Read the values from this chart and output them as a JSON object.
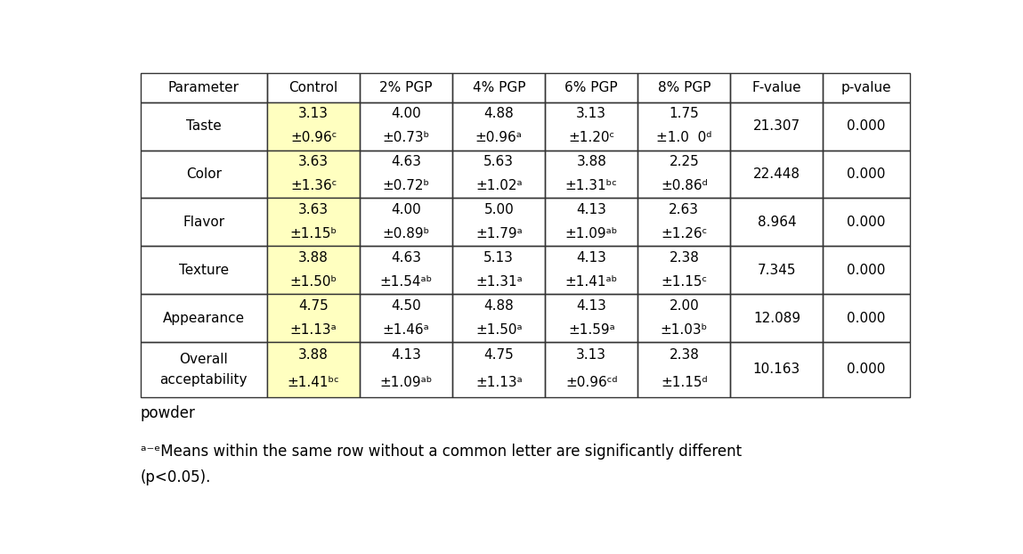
{
  "headers": [
    "Parameter",
    "Control",
    "2% PGP",
    "4% PGP",
    "6% PGP",
    "8% PGP",
    "F-value",
    "p-value"
  ],
  "rows": [
    {
      "param": "Taste",
      "line1": [
        "3.13",
        "4.00",
        "4.88",
        "3.13",
        "1.75"
      ],
      "line2": [
        "±0.96ᶜ",
        "±0.73ᵇ",
        "±0.96ᵃ",
        "±1.20ᶜ",
        "±1.0  0ᵈ"
      ],
      "f_value": "21.307",
      "p_value": "0.000"
    },
    {
      "param": "Color",
      "line1": [
        "3.63",
        "4.63",
        "5.63",
        "3.88",
        "2.25"
      ],
      "line2": [
        "±1.36ᶜ",
        "±0.72ᵇ",
        "±1.02ᵃ",
        "±1.31ᵇᶜ",
        "±0.86ᵈ"
      ],
      "f_value": "22.448",
      "p_value": "0.000"
    },
    {
      "param": "Flavor",
      "line1": [
        "3.63",
        "4.00",
        "5.00",
        "4.13",
        "2.63"
      ],
      "line2": [
        "±1.15ᵇ",
        "±0.89ᵇ",
        "±1.79ᵃ",
        "±1.09ᵃᵇ",
        "±1.26ᶜ"
      ],
      "f_value": "8.964",
      "p_value": "0.000"
    },
    {
      "param": "Texture",
      "line1": [
        "3.88",
        "4.63",
        "5.13",
        "4.13",
        "2.38"
      ],
      "line2": [
        "±1.50ᵇ",
        "±1.54ᵃᵇ",
        "±1.31ᵃ",
        "±1.41ᵃᵇ",
        "±1.15ᶜ"
      ],
      "f_value": "7.345",
      "p_value": "0.000"
    },
    {
      "param": "Appearance",
      "line1": [
        "4.75",
        "4.50",
        "4.88",
        "4.13",
        "2.00"
      ],
      "line2": [
        "±1.13ᵃ",
        "±1.46ᵃ",
        "±1.50ᵃ",
        "±1.59ᵃ",
        "±1.03ᵇ"
      ],
      "f_value": "12.089",
      "p_value": "0.000"
    },
    {
      "param_line1": "Overall",
      "param_line2": "acceptability",
      "line1": [
        "3.88",
        "4.13",
        "4.75",
        "3.13",
        "2.38"
      ],
      "line2": [
        "±1.41ᵇᶜ",
        "±1.09ᵃᵇ",
        "±1.13ᵃ",
        "±0.96ᶜᵈ",
        "±1.15ᵈ"
      ],
      "f_value": "10.163",
      "p_value": "0.000"
    }
  ],
  "control_bg": "#FFFFC0",
  "table_bg": "#FFFFFF",
  "border_color": "#333333",
  "font_size_header": 11,
  "font_size_data": 11,
  "font_size_footnote": 11
}
